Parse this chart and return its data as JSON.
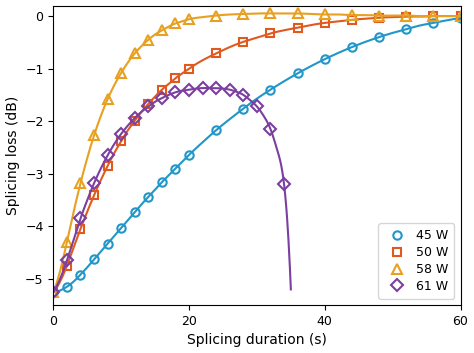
{
  "title": "",
  "xlabel": "Splicing duration (s)",
  "ylabel": "Splicing loss (dB)",
  "xlim": [
    0,
    60
  ],
  "ylim": [
    -5.5,
    0.2
  ],
  "yticks": [
    0,
    -1,
    -2,
    -3,
    -4,
    -5
  ],
  "xticks": [
    0,
    20,
    40,
    60
  ],
  "series": [
    {
      "label": "45 W",
      "color": "#2196c8",
      "marker": "o",
      "markersize": 6,
      "markevery": 2,
      "x": [
        0,
        1,
        2,
        3,
        4,
        5,
        6,
        7,
        8,
        9,
        10,
        11,
        12,
        13,
        14,
        15,
        16,
        17,
        18,
        19,
        20,
        22,
        24,
        26,
        28,
        30,
        32,
        34,
        36,
        38,
        40,
        42,
        44,
        46,
        48,
        50,
        52,
        54,
        56,
        58,
        60
      ],
      "y": [
        -5.25,
        -5.22,
        -5.15,
        -5.05,
        -4.92,
        -4.78,
        -4.63,
        -4.48,
        -4.33,
        -4.18,
        -4.03,
        -3.88,
        -3.73,
        -3.58,
        -3.44,
        -3.3,
        -3.16,
        -3.03,
        -2.9,
        -2.77,
        -2.64,
        -2.4,
        -2.17,
        -1.96,
        -1.76,
        -1.57,
        -1.4,
        -1.24,
        -1.09,
        -0.95,
        -0.82,
        -0.7,
        -0.59,
        -0.49,
        -0.4,
        -0.32,
        -0.25,
        -0.18,
        -0.13,
        -0.08,
        -0.04
      ]
    },
    {
      "label": "50 W",
      "color": "#e05a20",
      "marker": "s",
      "markersize": 6,
      "markevery": 2,
      "x": [
        0,
        1,
        2,
        3,
        4,
        5,
        6,
        7,
        8,
        9,
        10,
        11,
        12,
        13,
        14,
        15,
        16,
        17,
        18,
        19,
        20,
        22,
        24,
        26,
        28,
        30,
        32,
        34,
        36,
        38,
        40,
        42,
        44,
        46,
        48,
        50,
        52,
        54,
        56,
        58,
        60
      ],
      "y": [
        -5.25,
        -5.05,
        -4.75,
        -4.4,
        -4.05,
        -3.72,
        -3.41,
        -3.12,
        -2.85,
        -2.6,
        -2.38,
        -2.17,
        -1.99,
        -1.82,
        -1.67,
        -1.53,
        -1.4,
        -1.29,
        -1.18,
        -1.09,
        -1.0,
        -0.84,
        -0.71,
        -0.59,
        -0.49,
        -0.41,
        -0.33,
        -0.27,
        -0.22,
        -0.17,
        -0.13,
        -0.1,
        -0.07,
        -0.05,
        -0.03,
        -0.02,
        -0.01,
        -0.01,
        0.0,
        0.0,
        0.0
      ]
    },
    {
      "label": "58 W",
      "color": "#e8a020",
      "marker": "^",
      "markersize": 7,
      "markevery": 2,
      "x": [
        0,
        1,
        2,
        3,
        4,
        5,
        6,
        7,
        8,
        9,
        10,
        11,
        12,
        13,
        14,
        15,
        16,
        17,
        18,
        19,
        20,
        22,
        24,
        26,
        28,
        30,
        32,
        34,
        36,
        38,
        40,
        42,
        44,
        46,
        48,
        50,
        52,
        54,
        56,
        58,
        60
      ],
      "y": [
        -5.25,
        -4.85,
        -4.3,
        -3.72,
        -3.18,
        -2.7,
        -2.27,
        -1.9,
        -1.58,
        -1.31,
        -1.08,
        -0.88,
        -0.71,
        -0.57,
        -0.45,
        -0.35,
        -0.27,
        -0.2,
        -0.14,
        -0.1,
        -0.06,
        -0.02,
        0.01,
        0.03,
        0.04,
        0.05,
        0.05,
        0.05,
        0.05,
        0.04,
        0.03,
        0.03,
        0.02,
        0.02,
        0.01,
        0.01,
        0.01,
        0.0,
        0.0,
        0.0,
        0.0
      ]
    },
    {
      "label": "61 W",
      "color": "#7b3fa0",
      "marker": "D",
      "markersize": 6,
      "markevery": 2,
      "x": [
        0,
        1,
        2,
        3,
        4,
        5,
        6,
        7,
        8,
        9,
        10,
        11,
        12,
        13,
        14,
        15,
        16,
        17,
        18,
        19,
        20,
        21,
        22,
        23,
        24,
        25,
        26,
        27,
        28,
        29,
        30,
        31,
        32,
        33,
        34,
        35
      ],
      "y": [
        -5.25,
        -5.0,
        -4.65,
        -4.25,
        -3.85,
        -3.5,
        -3.18,
        -2.9,
        -2.65,
        -2.43,
        -2.24,
        -2.08,
        -1.94,
        -1.82,
        -1.72,
        -1.63,
        -1.56,
        -1.5,
        -1.45,
        -1.42,
        -1.4,
        -1.38,
        -1.37,
        -1.37,
        -1.37,
        -1.38,
        -1.4,
        -1.44,
        -1.5,
        -1.6,
        -1.72,
        -1.9,
        -2.15,
        -2.55,
        -3.2,
        -5.2
      ]
    }
  ],
  "legend_loc": "lower right",
  "legend_fontsize": 9,
  "figsize": [
    4.74,
    3.53
  ],
  "dpi": 100
}
